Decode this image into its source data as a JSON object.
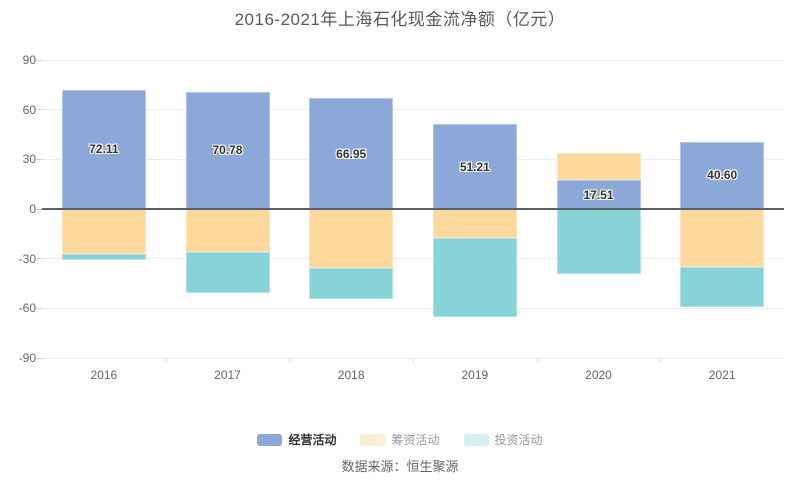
{
  "chart_data": {
    "type": "bar",
    "stacked": true,
    "title": "2016-2021年上海石化现金流净额（亿元）",
    "categories": [
      "2016",
      "2017",
      "2018",
      "2019",
      "2020",
      "2021"
    ],
    "series": [
      {
        "name": "经营活动",
        "color": "#8BA8D8",
        "values": [
          72.11,
          70.78,
          66.95,
          51.21,
          17.51,
          40.6
        ],
        "labels": [
          "72.11",
          "70.78",
          "66.95",
          "51.21",
          "17.51",
          "40.60"
        ],
        "show_labels": true
      },
      {
        "name": "筹资活动",
        "color": "#FDD89D",
        "values": [
          -27.4,
          -25.7,
          -35.9,
          -17.8,
          16.4,
          -35.3
        ],
        "labels": [],
        "show_labels": false
      },
      {
        "name": "投资活动",
        "color": "#87D3D8",
        "values": [
          -3.5,
          -25.3,
          -18.7,
          -47.7,
          -39.4,
          -24.1
        ],
        "labels": [],
        "show_labels": false
      }
    ],
    "ylim": [
      -90,
      90
    ],
    "yticks": [
      90,
      60,
      30,
      0,
      -30,
      -60,
      -90
    ],
    "grid": true,
    "legend_position": "bottom"
  },
  "legend": {
    "items": [
      {
        "label": "经营活动",
        "swatch": "#8BA8D8",
        "text_color": "#333333",
        "emphasis": true
      },
      {
        "label": "筹资活动",
        "swatch": "#FBEED5",
        "text_color": "#999999",
        "emphasis": false
      },
      {
        "label": "投资活动",
        "swatch": "#D6EFF0",
        "text_color": "#999999",
        "emphasis": false
      }
    ]
  },
  "source": {
    "text": "数据来源：恒生聚源"
  },
  "colors": {
    "grid": "#E8EDF6",
    "zero_line": "#5B6169",
    "axis_text": "#666666",
    "title_text": "#595959",
    "value_label": "#333333"
  }
}
